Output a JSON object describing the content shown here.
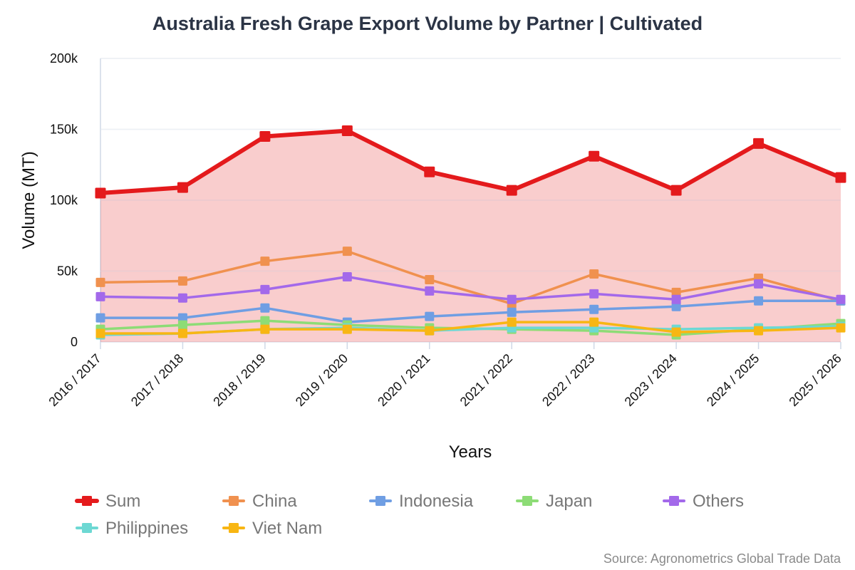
{
  "chart_data": {
    "type": "line",
    "title": "Australia Fresh Grape Export Volume by Partner | Cultivated",
    "xlabel": "Years",
    "ylabel": "Volume (MT)",
    "ylim": [
      0,
      200000
    ],
    "yticks": [
      {
        "value": 0,
        "label": "0"
      },
      {
        "value": 50000,
        "label": "50k"
      },
      {
        "value": 100000,
        "label": "100k"
      },
      {
        "value": 150000,
        "label": "150k"
      },
      {
        "value": 200000,
        "label": "200k"
      }
    ],
    "grid": true,
    "legend_position": "bottom",
    "categories": [
      "2016 / 2017",
      "2017 / 2018",
      "2018 / 2019",
      "2019 / 2020",
      "2020 / 2021",
      "2021 / 2022",
      "2022 / 2023",
      "2023 / 2024",
      "2024 / 2025",
      "2025 / 2026"
    ],
    "series": [
      {
        "name": "Sum",
        "color": "#e41a1c",
        "area": true,
        "values": [
          105000,
          109000,
          145000,
          149000,
          120000,
          107000,
          131000,
          107000,
          140000,
          116000
        ]
      },
      {
        "name": "China",
        "color": "#f0914f",
        "values": [
          42000,
          43000,
          57000,
          64000,
          44000,
          27000,
          48000,
          35000,
          45000,
          29000
        ]
      },
      {
        "name": "Indonesia",
        "color": "#6f9ee3",
        "values": [
          17000,
          17000,
          24000,
          14000,
          18000,
          21000,
          23000,
          25000,
          29000,
          29000
        ]
      },
      {
        "name": "Japan",
        "color": "#8ddc76",
        "values": [
          9000,
          12000,
          15000,
          12000,
          10000,
          9000,
          8000,
          5000,
          9000,
          13000
        ]
      },
      {
        "name": "Others",
        "color": "#a369ea",
        "values": [
          32000,
          31000,
          37000,
          46000,
          36000,
          30000,
          34000,
          30000,
          41000,
          30000
        ]
      },
      {
        "name": "Philippines",
        "color": "#6dd8d3",
        "values": [
          5000,
          6000,
          9000,
          10000,
          8000,
          10000,
          10000,
          9000,
          10000,
          11000
        ]
      },
      {
        "name": "Viet Nam",
        "color": "#f8b613",
        "values": [
          6000,
          6000,
          9000,
          9000,
          8000,
          14000,
          14000,
          7000,
          8000,
          10000
        ]
      }
    ]
  },
  "source": "Source: Agronometrics Global Trade Data"
}
